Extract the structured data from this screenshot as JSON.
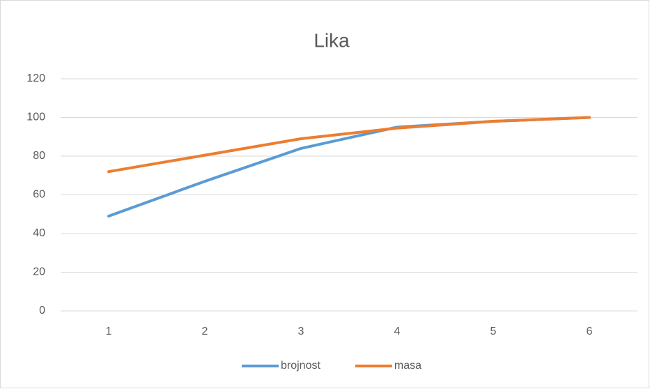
{
  "chart_data": {
    "type": "line",
    "title": "Lika",
    "categories": [
      "1",
      "2",
      "3",
      "4",
      "5",
      "6"
    ],
    "series": [
      {
        "name": "brojnost",
        "color": "#5b9bd5",
        "values": [
          49,
          67,
          84,
          95,
          98,
          100
        ]
      },
      {
        "name": "masa",
        "color": "#ed7d31",
        "values": [
          72,
          80.5,
          89,
          94.5,
          98,
          100
        ]
      }
    ],
    "ylim": [
      0,
      120
    ],
    "yticks": [
      0,
      20,
      40,
      60,
      80,
      100,
      120
    ],
    "grid": true,
    "legend": "bottom"
  }
}
